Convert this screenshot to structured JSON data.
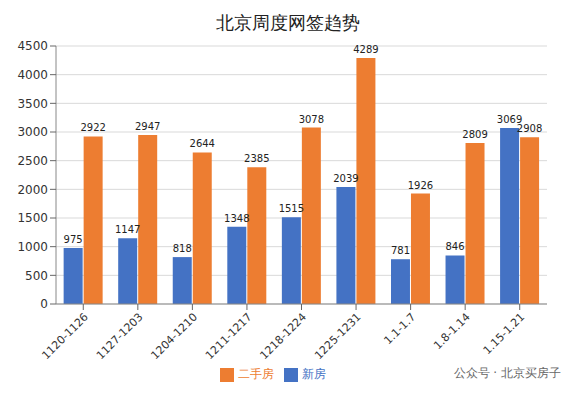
{
  "chart_data": {
    "type": "bar",
    "title": "北京周度网签趋势",
    "categories": [
      "1120-1126",
      "1127-1203",
      "1204-1210",
      "1211-1217",
      "1218-1224",
      "1225-1231",
      "1.1-1.7",
      "1.8-1.14",
      "1.15-1.21"
    ],
    "series": [
      {
        "name": "新房",
        "color": "#4472c4",
        "values": [
          975,
          1147,
          818,
          1348,
          1515,
          2039,
          781,
          846,
          3069
        ]
      },
      {
        "name": "二手房",
        "color": "#ed7d31",
        "values": [
          2922,
          2947,
          2644,
          2385,
          3078,
          4289,
          1926,
          2809,
          2908
        ]
      }
    ],
    "ylim": [
      0,
      4500
    ],
    "yticks": [
      0,
      500,
      1000,
      1500,
      2000,
      2500,
      3000,
      3500,
      4000,
      4500
    ],
    "grid": true,
    "data_labels": true,
    "legend": "bottom",
    "annotations": [
      "公众号 · 北京买房子"
    ]
  }
}
